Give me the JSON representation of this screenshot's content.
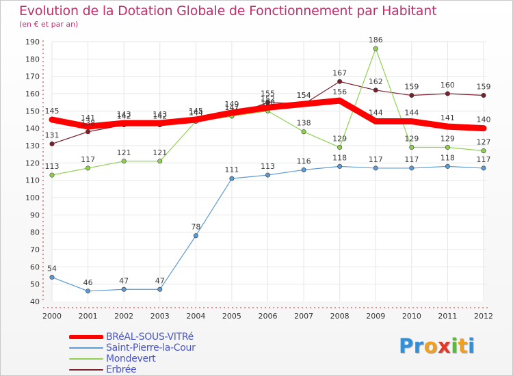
{
  "title": "Evolution de la Dotation Globale de Fonctionnement par Habitant",
  "subtitle": "(en € et par an)",
  "logo_text": "Proxiti",
  "chart_data": {
    "type": "line",
    "title": "Evolution de la Dotation Globale de Fonctionnement par Habitant",
    "subtitle": "(en € et par an)",
    "xlabel": "",
    "ylabel": "",
    "x": [
      "2000",
      "2001",
      "2002",
      "2003",
      "2004",
      "2005",
      "2006",
      "2007",
      "2008",
      "2009",
      "2010",
      "2011",
      "2012"
    ],
    "ylim": [
      40,
      190
    ],
    "yticks": [
      40,
      50,
      60,
      70,
      80,
      90,
      100,
      110,
      120,
      130,
      140,
      150,
      160,
      170,
      180,
      190
    ],
    "grid": true,
    "legend_position": "bottom-left",
    "series": [
      {
        "name": "Erbrée",
        "color": "#7a1f2b",
        "values": [
          131,
          138,
          142,
          142,
          144,
          147,
          155,
          154,
          167,
          162,
          159,
          160,
          159
        ],
        "labels": [
          "131",
          "138",
          "142",
          "142",
          "144",
          "147",
          "155",
          "154",
          "167",
          "162",
          "159",
          "160",
          "159"
        ]
      },
      {
        "name": "Mondevert",
        "color": "#8fd14f",
        "values": [
          113,
          117,
          121,
          121,
          144,
          147,
          150,
          138,
          129,
          186,
          129,
          129,
          127
        ],
        "labels": [
          "113",
          "117",
          "121",
          "121",
          "144",
          "147",
          "150",
          "138",
          "129",
          "186",
          "129",
          "129",
          "127"
        ]
      },
      {
        "name": "Saint-Pierre-la-Cour",
        "color": "#5b9bd5",
        "values": [
          54,
          46,
          47,
          47,
          78,
          111,
          113,
          116,
          118,
          117,
          117,
          118,
          117
        ],
        "labels": [
          "54",
          "46",
          "47",
          "47",
          "78",
          "111",
          "113",
          "116",
          "118",
          "117",
          "117",
          "118",
          "117"
        ]
      },
      {
        "name": "BRéAL-SOUS-VITRé",
        "color": "#ff0000",
        "values": [
          145,
          141,
          143,
          143,
          145,
          149,
          152,
          154,
          156,
          144,
          144,
          141,
          140
        ],
        "labels": [
          "145",
          "141",
          "143",
          "143",
          "145",
          "149",
          "152",
          "154",
          "156",
          "144",
          "144",
          "141",
          "140"
        ]
      }
    ]
  },
  "legend": {
    "items": [
      {
        "label": "BRéAL-SOUS-VITRé",
        "color": "#ff0000"
      },
      {
        "label": "Saint-Pierre-la-Cour",
        "color": "#5b9bd5"
      },
      {
        "label": "Mondevert",
        "color": "#8fd14f"
      },
      {
        "label": "Erbrée",
        "color": "#7a1f2b"
      }
    ]
  }
}
